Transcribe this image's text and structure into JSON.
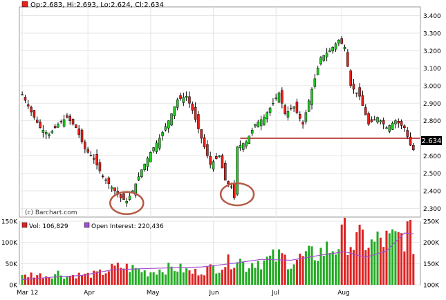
{
  "header": {
    "ohlc_text": "Op:2.683, Hi:2.693, Lo:2.624, Cl:2.634",
    "last_price": "2.634",
    "watermark": "(c) Barchart.com"
  },
  "volume_legend": {
    "vol_text": "Vol: 106,829",
    "oi_text": "Open Interest: 220,436"
  },
  "colors": {
    "up": "#22cc22",
    "down": "#e8201a",
    "outline": "#000000",
    "support_line": "#c0504d",
    "circle": "#b55a45",
    "open_interest": "#a050d0",
    "volume_up": "#22aa22",
    "volume_down": "#dd2222",
    "price_box": "#000000"
  },
  "chart_data": [
    {
      "type": "candlestick",
      "ylim": [
        2.25,
        3.45
      ],
      "yticks": [
        "3.400",
        "3.300",
        "3.200",
        "3.100",
        "3.000",
        "2.900",
        "2.800",
        "2.700",
        "2.600",
        "2.500",
        "2.400",
        "2.300"
      ],
      "xticks": [
        "Mar 12",
        "Apr",
        "May",
        "Jun",
        "Jul",
        "Aug"
      ],
      "xtick_index": [
        0,
        22,
        43,
        64,
        85,
        107
      ],
      "close_points": [
        [
          0,
          2.95
        ],
        [
          3,
          2.85
        ],
        [
          6,
          2.76
        ],
        [
          9,
          2.72
        ],
        [
          12,
          2.78
        ],
        [
          15,
          2.82
        ],
        [
          18,
          2.76
        ],
        [
          21,
          2.64
        ],
        [
          24,
          2.58
        ],
        [
          27,
          2.48
        ],
        [
          30,
          2.42
        ],
        [
          33,
          2.36
        ],
        [
          35,
          2.34
        ],
        [
          37,
          2.4
        ],
        [
          40,
          2.52
        ],
        [
          43,
          2.62
        ],
        [
          46,
          2.7
        ],
        [
          49,
          2.8
        ],
        [
          52,
          2.92
        ],
        [
          55,
          2.94
        ],
        [
          57,
          2.86
        ],
        [
          60,
          2.7
        ],
        [
          63,
          2.55
        ],
        [
          66,
          2.6
        ],
        [
          68,
          2.46
        ],
        [
          70,
          2.42
        ],
        [
          71,
          2.36
        ],
        [
          72,
          2.65
        ],
        [
          75,
          2.68
        ],
        [
          78,
          2.78
        ],
        [
          81,
          2.82
        ],
        [
          84,
          2.9
        ],
        [
          86,
          2.96
        ],
        [
          88,
          2.84
        ],
        [
          91,
          2.88
        ],
        [
          94,
          2.78
        ],
        [
          97,
          2.98
        ],
        [
          100,
          3.16
        ],
        [
          103,
          3.2
        ],
        [
          106,
          3.26
        ],
        [
          108,
          3.22
        ],
        [
          110,
          3.0
        ],
        [
          113,
          2.94
        ],
        [
          116,
          2.78
        ],
        [
          119,
          2.82
        ],
        [
          122,
          2.76
        ],
        [
          125,
          2.8
        ],
        [
          128,
          2.76
        ],
        [
          130,
          2.66
        ],
        [
          131,
          2.634
        ]
      ],
      "support_level": 2.7,
      "support_from_index": 73,
      "circled_lows": [
        {
          "index": 35,
          "price": 2.33
        },
        {
          "index": 72,
          "price": 2.38
        }
      ],
      "grid": true
    },
    {
      "type": "bar",
      "title": "Vol: 106,829",
      "ylim": [
        0,
        150000
      ],
      "yticks_left": [
        "150K",
        "100K",
        "50K",
        "0K"
      ],
      "yticks_right": [
        "250K",
        "200K",
        "150K",
        "100K"
      ],
      "volume_points": [
        [
          0,
          20000
        ],
        [
          3,
          26000
        ],
        [
          6,
          24000
        ],
        [
          9,
          22000
        ],
        [
          12,
          30000
        ],
        [
          15,
          20000
        ],
        [
          18,
          25000
        ],
        [
          21,
          24000
        ],
        [
          24,
          26000
        ],
        [
          27,
          30000
        ],
        [
          30,
          40000
        ],
        [
          33,
          45000
        ],
        [
          36,
          42000
        ],
        [
          39,
          38000
        ],
        [
          42,
          30000
        ],
        [
          45,
          36000
        ],
        [
          48,
          40000
        ],
        [
          51,
          42000
        ],
        [
          54,
          38000
        ],
        [
          57,
          30000
        ],
        [
          60,
          35000
        ],
        [
          63,
          40000
        ],
        [
          66,
          46000
        ],
        [
          69,
          55000
        ],
        [
          72,
          70000
        ],
        [
          75,
          45000
        ],
        [
          78,
          60000
        ],
        [
          81,
          58000
        ],
        [
          84,
          66000
        ],
        [
          87,
          70000
        ],
        [
          90,
          55000
        ],
        [
          93,
          65000
        ],
        [
          96,
          72000
        ],
        [
          99,
          78000
        ],
        [
          102,
          88000
        ],
        [
          105,
          92000
        ],
        [
          108,
          125000
        ],
        [
          111,
          100000
        ],
        [
          114,
          115000
        ],
        [
          117,
          98000
        ],
        [
          120,
          112000
        ],
        [
          123,
          108000
        ],
        [
          126,
          115000
        ],
        [
          129,
          130000
        ],
        [
          131,
          106829
        ]
      ],
      "open_interest_points": [
        [
          0,
          112000
        ],
        [
          10,
          118000
        ],
        [
          20,
          122000
        ],
        [
          30,
          135000
        ],
        [
          40,
          138000
        ],
        [
          50,
          140000
        ],
        [
          60,
          142000
        ],
        [
          70,
          150000
        ],
        [
          80,
          160000
        ],
        [
          90,
          158000
        ],
        [
          100,
          170000
        ],
        [
          108,
          178000
        ],
        [
          115,
          165000
        ],
        [
          122,
          180000
        ],
        [
          128,
          222000
        ],
        [
          131,
          220436
        ]
      ],
      "open_interest_ylim": [
        100000,
        250000
      ]
    }
  ]
}
